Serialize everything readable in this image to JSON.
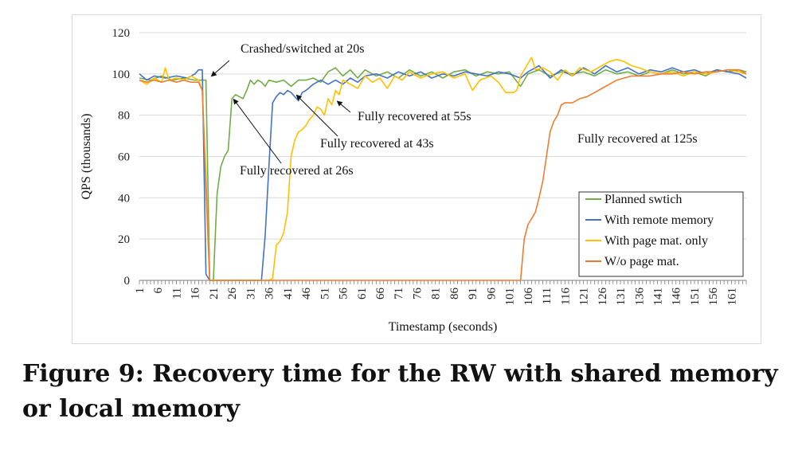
{
  "caption": "Figure 9: Recovery time for the RW with shared memory or local memory",
  "chart_data": {
    "type": "line",
    "title": "",
    "xlabel": "Timestamp (seconds)",
    "ylabel": "QPS (thousands)",
    "ylim": [
      0,
      120
    ],
    "yticks": [
      0,
      20,
      40,
      60,
      80,
      100,
      120
    ],
    "xlim": [
      1,
      165
    ],
    "xticks": [
      1,
      6,
      11,
      16,
      21,
      26,
      31,
      36,
      41,
      46,
      51,
      56,
      61,
      66,
      71,
      76,
      81,
      86,
      91,
      96,
      101,
      106,
      111,
      116,
      121,
      126,
      131,
      136,
      141,
      146,
      151,
      156,
      161
    ],
    "grid": "horizontal",
    "legend_position": "bottom-right",
    "colors": {
      "planned": "#70ad47",
      "remote": "#4472c4",
      "pagemat": "#ffc000",
      "nopagemat": "#ed7d31"
    },
    "series": [
      {
        "name": "Planned swtich",
        "color": "#70ad47",
        "points": [
          [
            1,
            98
          ],
          [
            4,
            97
          ],
          [
            7,
            99
          ],
          [
            10,
            97
          ],
          [
            13,
            98
          ],
          [
            16,
            97
          ],
          [
            18,
            97
          ],
          [
            19,
            97
          ],
          [
            20,
            0
          ],
          [
            21,
            0
          ],
          [
            22,
            42
          ],
          [
            23,
            55
          ],
          [
            24,
            60
          ],
          [
            25,
            63
          ],
          [
            26,
            88
          ],
          [
            27,
            90
          ],
          [
            28,
            89
          ],
          [
            29,
            88
          ],
          [
            30,
            92
          ],
          [
            31,
            97
          ],
          [
            32,
            95
          ],
          [
            33,
            97
          ],
          [
            34,
            96
          ],
          [
            35,
            94
          ],
          [
            36,
            97
          ],
          [
            38,
            96
          ],
          [
            40,
            97
          ],
          [
            42,
            94
          ],
          [
            44,
            97
          ],
          [
            46,
            97
          ],
          [
            48,
            98
          ],
          [
            50,
            96
          ],
          [
            52,
            101
          ],
          [
            54,
            103
          ],
          [
            56,
            99
          ],
          [
            58,
            102
          ],
          [
            60,
            98
          ],
          [
            62,
            102
          ],
          [
            65,
            99
          ],
          [
            68,
            101
          ],
          [
            71,
            98
          ],
          [
            74,
            102
          ],
          [
            77,
            99
          ],
          [
            80,
            101
          ],
          [
            83,
            98
          ],
          [
            86,
            101
          ],
          [
            89,
            102
          ],
          [
            92,
            99
          ],
          [
            95,
            101
          ],
          [
            98,
            100
          ],
          [
            101,
            101
          ],
          [
            104,
            94
          ],
          [
            106,
            100
          ],
          [
            109,
            102
          ],
          [
            112,
            99
          ],
          [
            115,
            101
          ],
          [
            118,
            100
          ],
          [
            121,
            101
          ],
          [
            124,
            99
          ],
          [
            127,
            102
          ],
          [
            130,
            100
          ],
          [
            133,
            101
          ],
          [
            136,
            99
          ],
          [
            139,
            101
          ],
          [
            142,
            100
          ],
          [
            145,
            102
          ],
          [
            148,
            100
          ],
          [
            151,
            101
          ],
          [
            154,
            99
          ],
          [
            157,
            102
          ],
          [
            160,
            101
          ],
          [
            163,
            102
          ],
          [
            165,
            101
          ]
        ]
      },
      {
        "name": "With remote memory",
        "color": "#4472c4",
        "points": [
          [
            1,
            100
          ],
          [
            3,
            97
          ],
          [
            5,
            99
          ],
          [
            8,
            98
          ],
          [
            11,
            99
          ],
          [
            14,
            98
          ],
          [
            16,
            100
          ],
          [
            17,
            102
          ],
          [
            18,
            102
          ],
          [
            19,
            3
          ],
          [
            20,
            0
          ],
          [
            34,
            0
          ],
          [
            35,
            22
          ],
          [
            36,
            55
          ],
          [
            37,
            86
          ],
          [
            38,
            89
          ],
          [
            39,
            91
          ],
          [
            40,
            90
          ],
          [
            41,
            92
          ],
          [
            42,
            91
          ],
          [
            43,
            89
          ],
          [
            44,
            87
          ],
          [
            45,
            91
          ],
          [
            46,
            92
          ],
          [
            48,
            95
          ],
          [
            50,
            97
          ],
          [
            52,
            95
          ],
          [
            54,
            97
          ],
          [
            56,
            95
          ],
          [
            58,
            98
          ],
          [
            60,
            96
          ],
          [
            62,
            99
          ],
          [
            65,
            100
          ],
          [
            68,
            98
          ],
          [
            71,
            101
          ],
          [
            74,
            99
          ],
          [
            77,
            101
          ],
          [
            80,
            98
          ],
          [
            83,
            100
          ],
          [
            86,
            99
          ],
          [
            89,
            101
          ],
          [
            92,
            100
          ],
          [
            95,
            99
          ],
          [
            98,
            101
          ],
          [
            101,
            100
          ],
          [
            104,
            98
          ],
          [
            106,
            101
          ],
          [
            109,
            104
          ],
          [
            112,
            98
          ],
          [
            115,
            102
          ],
          [
            118,
            99
          ],
          [
            121,
            103
          ],
          [
            124,
            100
          ],
          [
            127,
            104
          ],
          [
            130,
            101
          ],
          [
            133,
            103
          ],
          [
            136,
            100
          ],
          [
            139,
            102
          ],
          [
            142,
            101
          ],
          [
            145,
            103
          ],
          [
            148,
            101
          ],
          [
            151,
            102
          ],
          [
            154,
            100
          ],
          [
            157,
            102
          ],
          [
            160,
            101
          ],
          [
            163,
            100
          ],
          [
            165,
            98
          ]
        ]
      },
      {
        "name": "With page mat. only",
        "color": "#ffc000",
        "points": [
          [
            1,
            97
          ],
          [
            3,
            95
          ],
          [
            5,
            98
          ],
          [
            7,
            96
          ],
          [
            8,
            103
          ],
          [
            9,
            97
          ],
          [
            11,
            98
          ],
          [
            13,
            97
          ],
          [
            15,
            99
          ],
          [
            17,
            97
          ],
          [
            18,
            92
          ],
          [
            19,
            50
          ],
          [
            20,
            0
          ],
          [
            21,
            0
          ],
          [
            36,
            0
          ],
          [
            37,
            1
          ],
          [
            38,
            17
          ],
          [
            39,
            19
          ],
          [
            40,
            23
          ],
          [
            41,
            33
          ],
          [
            42,
            60
          ],
          [
            43,
            68
          ],
          [
            44,
            72
          ],
          [
            45,
            73
          ],
          [
            46,
            75
          ],
          [
            47,
            78
          ],
          [
            48,
            80
          ],
          [
            49,
            84
          ],
          [
            50,
            83
          ],
          [
            51,
            80
          ],
          [
            52,
            88
          ],
          [
            53,
            85
          ],
          [
            54,
            92
          ],
          [
            55,
            90
          ],
          [
            56,
            97
          ],
          [
            58,
            95
          ],
          [
            60,
            93
          ],
          [
            62,
            99
          ],
          [
            64,
            96
          ],
          [
            66,
            98
          ],
          [
            68,
            93
          ],
          [
            70,
            99
          ],
          [
            72,
            97
          ],
          [
            74,
            101
          ],
          [
            77,
            98
          ],
          [
            80,
            100
          ],
          [
            83,
            101
          ],
          [
            86,
            98
          ],
          [
            89,
            100
          ],
          [
            91,
            92
          ],
          [
            93,
            97
          ],
          [
            96,
            99
          ],
          [
            98,
            96
          ],
          [
            100,
            91
          ],
          [
            102,
            91
          ],
          [
            103,
            92
          ],
          [
            104,
            99
          ],
          [
            106,
            105
          ],
          [
            107,
            108
          ],
          [
            108,
            102
          ],
          [
            110,
            103
          ],
          [
            112,
            101
          ],
          [
            114,
            97
          ],
          [
            116,
            102
          ],
          [
            118,
            99
          ],
          [
            120,
            103
          ],
          [
            123,
            101
          ],
          [
            126,
            104
          ],
          [
            128,
            106
          ],
          [
            130,
            107
          ],
          [
            132,
            106
          ],
          [
            134,
            104
          ],
          [
            136,
            103
          ],
          [
            139,
            101
          ],
          [
            142,
            100
          ],
          [
            145,
            101
          ],
          [
            148,
            99
          ],
          [
            151,
            101
          ],
          [
            154,
            100
          ],
          [
            157,
            101
          ],
          [
            160,
            102
          ],
          [
            163,
            101
          ],
          [
            165,
            100
          ]
        ]
      },
      {
        "name": "W/o page mat.",
        "color": "#ed7d31",
        "points": [
          [
            1,
            97
          ],
          [
            3,
            96
          ],
          [
            5,
            97
          ],
          [
            7,
            96
          ],
          [
            9,
            97
          ],
          [
            11,
            96
          ],
          [
            13,
            97
          ],
          [
            15,
            96
          ],
          [
            17,
            96
          ],
          [
            18,
            92
          ],
          [
            19,
            45
          ],
          [
            20,
            0
          ],
          [
            104,
            0
          ],
          [
            105,
            20
          ],
          [
            106,
            27
          ],
          [
            107,
            30
          ],
          [
            108,
            33
          ],
          [
            109,
            40
          ],
          [
            110,
            48
          ],
          [
            111,
            60
          ],
          [
            112,
            72
          ],
          [
            113,
            77
          ],
          [
            114,
            80
          ],
          [
            115,
            85
          ],
          [
            116,
            86
          ],
          [
            118,
            86
          ],
          [
            120,
            88
          ],
          [
            122,
            89
          ],
          [
            124,
            91
          ],
          [
            126,
            93
          ],
          [
            128,
            95
          ],
          [
            130,
            97
          ],
          [
            132,
            98
          ],
          [
            134,
            99
          ],
          [
            136,
            99
          ],
          [
            139,
            99
          ],
          [
            142,
            100
          ],
          [
            145,
            100
          ],
          [
            148,
            101
          ],
          [
            151,
            100
          ],
          [
            154,
            101
          ],
          [
            157,
            101
          ],
          [
            160,
            102
          ],
          [
            163,
            102
          ],
          [
            165,
            100
          ]
        ]
      }
    ],
    "annotations": [
      {
        "text": "Crashed/switched at 20s",
        "target": [
          20,
          100
        ]
      },
      {
        "text": "Fully recovered at 26s",
        "target": [
          26,
          89
        ]
      },
      {
        "text": "Fully recovered at 43s",
        "target": [
          43,
          91
        ]
      },
      {
        "text": "Fully recovered at 55s",
        "target": [
          54,
          88
        ]
      },
      {
        "text": "Fully recovered at 125s",
        "target": null
      }
    ]
  }
}
